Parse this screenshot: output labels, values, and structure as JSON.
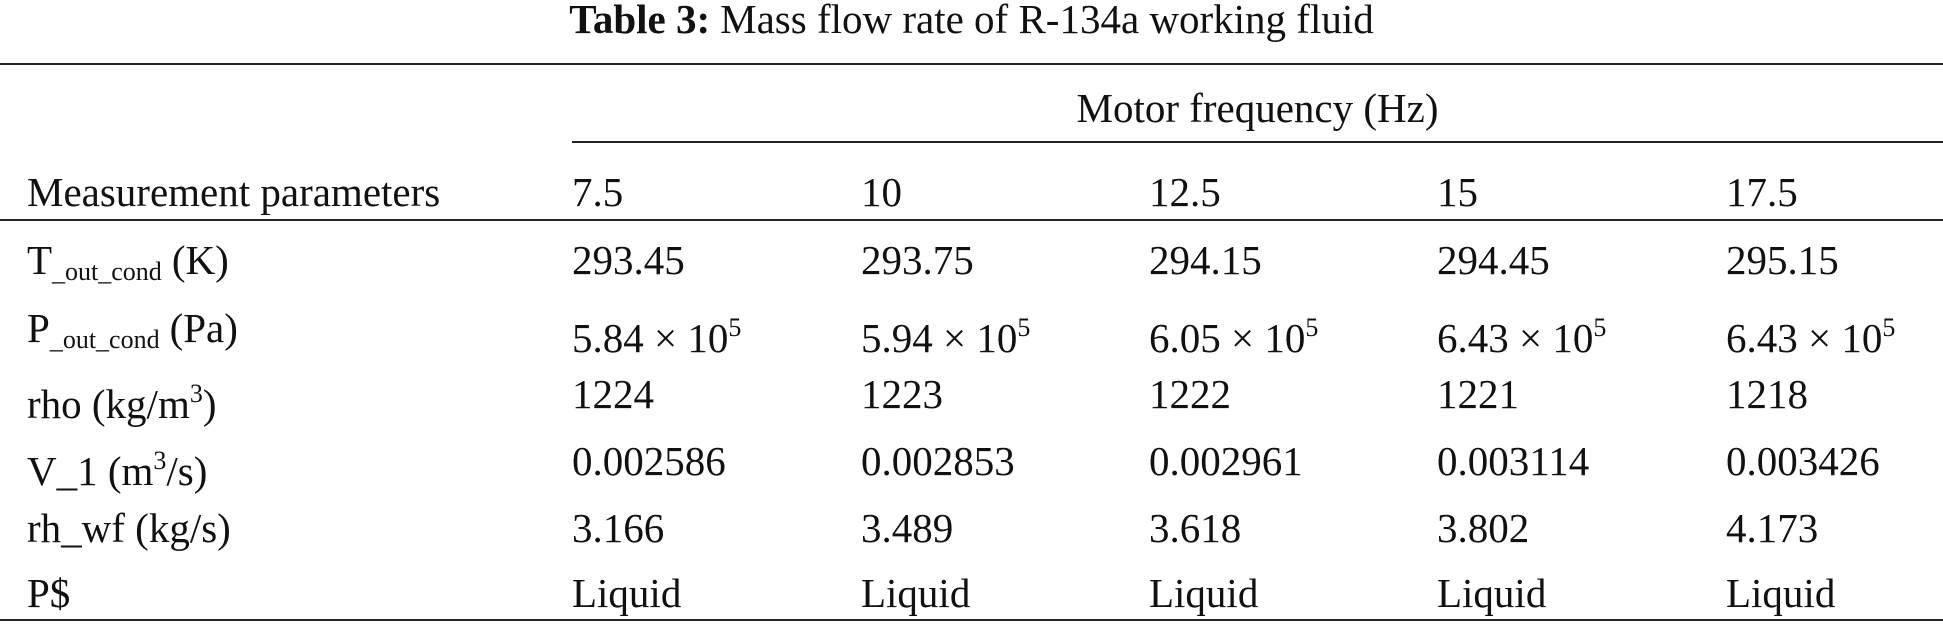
{
  "title": {
    "label": "Table 3:",
    "text": "Mass flow rate of R-134a working fluid"
  },
  "header": {
    "group": "Motor frequency (Hz)",
    "first": "Measurement parameters",
    "columns": [
      7.5,
      10,
      12.5,
      15,
      17.5
    ]
  },
  "rows": [
    {
      "label": {
        "main": "T",
        "sub": "_out_cond",
        "unit": "(K)"
      },
      "cells": [
        293.45,
        293.75,
        294.15,
        294.45,
        295.15
      ]
    },
    {
      "label": {
        "main": "P",
        "sub": "_out_cond",
        "unit": "(Pa)"
      },
      "cells": [
        {
          "base": "5.84 × 10",
          "sup": 5
        },
        {
          "base": "5.94 × 10",
          "sup": 5
        },
        {
          "base": "6.05 × 10",
          "sup": 5
        },
        {
          "base": "6.43 × 10",
          "sup": 5
        },
        {
          "base": "6.43 × 10",
          "sup": 5
        }
      ]
    },
    {
      "label": {
        "main": "rho (kg/m",
        "sup": 3,
        "unit": ")"
      },
      "cells": [
        1224,
        1223,
        1222,
        1221,
        1218
      ]
    },
    {
      "label": {
        "main": "V_1 (m",
        "sup": 3,
        "unit": "/s)"
      },
      "cells": [
        0.002586,
        0.002853,
        0.002961,
        0.003114,
        0.003426
      ]
    },
    {
      "label": {
        "main": "rh_wf (kg/s)"
      },
      "cells": [
        3.166,
        3.489,
        3.618,
        3.802,
        4.173
      ]
    },
    {
      "label": {
        "main": "P$"
      },
      "cells": [
        "Liquid",
        "Liquid",
        "Liquid",
        "Liquid",
        "Liquid"
      ]
    }
  ]
}
